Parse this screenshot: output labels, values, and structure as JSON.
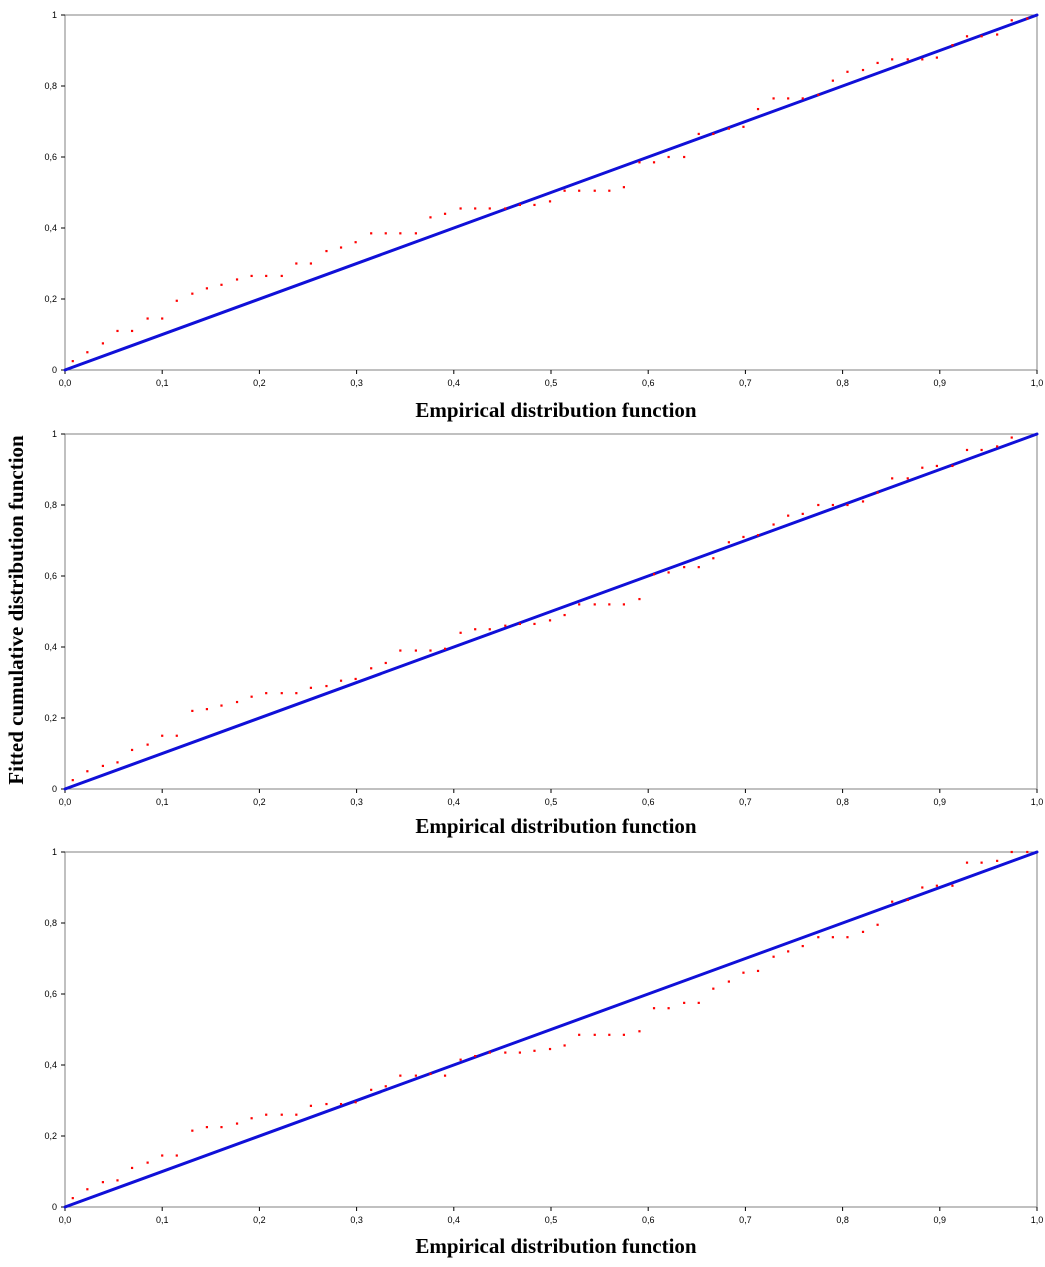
{
  "chart_data": [
    {
      "type": "scatter",
      "xlabel": "Empirical distribution function",
      "xlim": [
        0,
        1
      ],
      "ylim": [
        0,
        1
      ],
      "x_ticks": [
        "0,0",
        "0,1",
        "0,2",
        "0,3",
        "0,4",
        "0,5",
        "0,6",
        "0,7",
        "0,8",
        "0,9",
        "1,0"
      ],
      "y_ticks": [
        "0",
        "0,2",
        "0,4",
        "0,6",
        "0,8",
        "1"
      ],
      "grid": false,
      "line_color": "#1010d8",
      "point_color": "#ff0000",
      "series": [
        {
          "kind": "reference_line",
          "x": [
            0,
            1
          ],
          "y": [
            0,
            1
          ]
        },
        {
          "kind": "points",
          "x": [
            0.008,
            0.023,
            0.039,
            0.054,
            0.069,
            0.085,
            0.1,
            0.115,
            0.131,
            0.146,
            0.161,
            0.177,
            0.192,
            0.207,
            0.223,
            0.238,
            0.253,
            0.269,
            0.284,
            0.299,
            0.315,
            0.33,
            0.345,
            0.361,
            0.376,
            0.391,
            0.407,
            0.422,
            0.437,
            0.453,
            0.468,
            0.483,
            0.499,
            0.514,
            0.529,
            0.545,
            0.56,
            0.575,
            0.591,
            0.606,
            0.621,
            0.637,
            0.652,
            0.667,
            0.683,
            0.698,
            0.713,
            0.729,
            0.744,
            0.759,
            0.775,
            0.79,
            0.805,
            0.821,
            0.836,
            0.851,
            0.867,
            0.882,
            0.897,
            0.913,
            0.928,
            0.943,
            0.959,
            0.974,
            0.99
          ],
          "y": [
            0.025,
            0.05,
            0.075,
            0.11,
            0.11,
            0.145,
            0.145,
            0.195,
            0.215,
            0.23,
            0.24,
            0.255,
            0.265,
            0.265,
            0.265,
            0.3,
            0.3,
            0.335,
            0.345,
            0.36,
            0.385,
            0.385,
            0.385,
            0.385,
            0.43,
            0.44,
            0.455,
            0.455,
            0.455,
            0.455,
            0.465,
            0.465,
            0.475,
            0.505,
            0.505,
            0.505,
            0.505,
            0.515,
            0.585,
            0.585,
            0.6,
            0.6,
            0.665,
            0.665,
            0.68,
            0.685,
            0.735,
            0.765,
            0.765,
            0.765,
            0.775,
            0.815,
            0.84,
            0.845,
            0.865,
            0.875,
            0.875,
            0.875,
            0.88,
            0.915,
            0.94,
            0.94,
            0.945,
            0.985,
            0.99
          ]
        }
      ]
    },
    {
      "type": "scatter",
      "xlabel": "Empirical distribution function",
      "xlim": [
        0,
        1
      ],
      "ylim": [
        0,
        1
      ],
      "x_ticks": [
        "0,0",
        "0,1",
        "0,2",
        "0,3",
        "0,4",
        "0,5",
        "0,6",
        "0,7",
        "0,8",
        "0,9",
        "1,0"
      ],
      "y_ticks": [
        "0",
        "0,2",
        "0,4",
        "0,6",
        "0,8",
        "1"
      ],
      "grid": false,
      "line_color": "#1010d8",
      "point_color": "#ff0000",
      "series": [
        {
          "kind": "reference_line",
          "x": [
            0,
            1
          ],
          "y": [
            0,
            1
          ]
        },
        {
          "kind": "points",
          "x": [
            0.008,
            0.023,
            0.039,
            0.054,
            0.069,
            0.085,
            0.1,
            0.115,
            0.131,
            0.146,
            0.161,
            0.177,
            0.192,
            0.207,
            0.223,
            0.238,
            0.253,
            0.269,
            0.284,
            0.299,
            0.315,
            0.33,
            0.345,
            0.361,
            0.376,
            0.391,
            0.407,
            0.422,
            0.437,
            0.453,
            0.468,
            0.483,
            0.499,
            0.514,
            0.529,
            0.545,
            0.56,
            0.575,
            0.591,
            0.606,
            0.621,
            0.637,
            0.652,
            0.667,
            0.683,
            0.698,
            0.713,
            0.729,
            0.744,
            0.759,
            0.775,
            0.79,
            0.805,
            0.821,
            0.836,
            0.851,
            0.867,
            0.882,
            0.897,
            0.913,
            0.928,
            0.943,
            0.959,
            0.974
          ],
          "y": [
            0.025,
            0.05,
            0.065,
            0.075,
            0.11,
            0.125,
            0.15,
            0.15,
            0.22,
            0.225,
            0.235,
            0.245,
            0.26,
            0.27,
            0.27,
            0.27,
            0.285,
            0.29,
            0.305,
            0.31,
            0.34,
            0.355,
            0.39,
            0.39,
            0.39,
            0.395,
            0.44,
            0.45,
            0.45,
            0.46,
            0.465,
            0.465,
            0.475,
            0.49,
            0.52,
            0.52,
            0.52,
            0.52,
            0.535,
            0.605,
            0.61,
            0.625,
            0.625,
            0.65,
            0.695,
            0.71,
            0.715,
            0.745,
            0.77,
            0.775,
            0.8,
            0.8,
            0.8,
            0.81,
            0.835,
            0.875,
            0.875,
            0.905,
            0.91,
            0.91,
            0.955,
            0.955,
            0.965,
            0.99
          ]
        }
      ]
    },
    {
      "type": "scatter",
      "xlabel": "Empirical distribution function",
      "xlim": [
        0,
        1
      ],
      "ylim": [
        0,
        1
      ],
      "x_ticks": [
        "0,0",
        "0,1",
        "0,2",
        "0,3",
        "0,4",
        "0,5",
        "0,6",
        "0,7",
        "0,8",
        "0,9",
        "1,0"
      ],
      "y_ticks": [
        "0",
        "0,2",
        "0,4",
        "0,6",
        "0,8",
        "1"
      ],
      "grid": false,
      "line_color": "#1010d8",
      "point_color": "#ff0000",
      "series": [
        {
          "kind": "reference_line",
          "x": [
            0,
            1
          ],
          "y": [
            0,
            1
          ]
        },
        {
          "kind": "points",
          "x": [
            0.008,
            0.023,
            0.039,
            0.054,
            0.069,
            0.085,
            0.1,
            0.115,
            0.131,
            0.146,
            0.161,
            0.177,
            0.192,
            0.207,
            0.223,
            0.238,
            0.253,
            0.269,
            0.284,
            0.299,
            0.315,
            0.33,
            0.345,
            0.361,
            0.376,
            0.391,
            0.407,
            0.422,
            0.437,
            0.453,
            0.468,
            0.483,
            0.499,
            0.514,
            0.529,
            0.545,
            0.56,
            0.575,
            0.591,
            0.606,
            0.621,
            0.637,
            0.652,
            0.667,
            0.683,
            0.698,
            0.713,
            0.729,
            0.744,
            0.759,
            0.775,
            0.79,
            0.805,
            0.821,
            0.836,
            0.851,
            0.867,
            0.882,
            0.897,
            0.913,
            0.928,
            0.943,
            0.959,
            0.974,
            0.99
          ],
          "y": [
            0.025,
            0.05,
            0.07,
            0.075,
            0.11,
            0.125,
            0.145,
            0.145,
            0.215,
            0.225,
            0.225,
            0.235,
            0.25,
            0.26,
            0.26,
            0.26,
            0.285,
            0.29,
            0.29,
            0.295,
            0.33,
            0.34,
            0.37,
            0.37,
            0.375,
            0.37,
            0.415,
            0.425,
            0.435,
            0.435,
            0.435,
            0.44,
            0.445,
            0.455,
            0.485,
            0.485,
            0.485,
            0.485,
            0.495,
            0.56,
            0.56,
            0.575,
            0.575,
            0.615,
            0.635,
            0.66,
            0.665,
            0.705,
            0.72,
            0.735,
            0.76,
            0.76,
            0.76,
            0.775,
            0.795,
            0.86,
            0.865,
            0.9,
            0.905,
            0.905,
            0.97,
            0.97,
            0.975,
            1.0,
            1.0
          ]
        }
      ]
    }
  ],
  "y_axis_label": "Fitted cumulative distribution function"
}
